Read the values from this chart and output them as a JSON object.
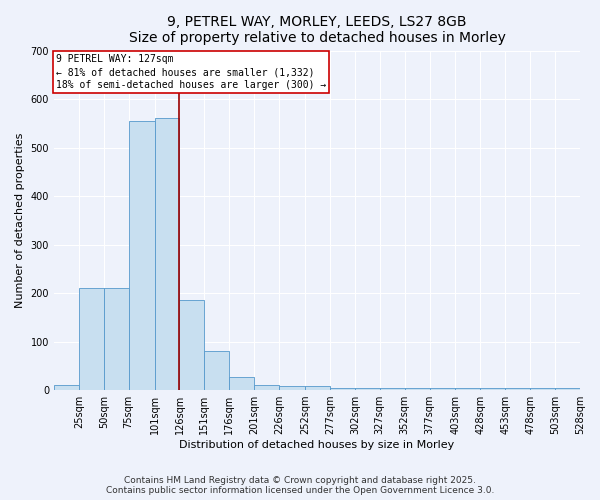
{
  "title_line1": "9, PETREL WAY, MORLEY, LEEDS, LS27 8GB",
  "title_line2": "Size of property relative to detached houses in Morley",
  "xlabel": "Distribution of detached houses by size in Morley",
  "ylabel": "Number of detached properties",
  "bar_values": [
    10,
    210,
    210,
    555,
    560,
    185,
    80,
    28,
    10,
    8,
    8,
    5,
    5,
    5,
    5,
    5,
    5,
    5,
    5,
    5,
    5
  ],
  "bin_edges": [
    0,
    25,
    50,
    75,
    101,
    126,
    151,
    176,
    201,
    226,
    252,
    277,
    302,
    327,
    352,
    377,
    403,
    428,
    453,
    478,
    503,
    528
  ],
  "tick_labels": [
    "25sqm",
    "50sqm",
    "75sqm",
    "101sqm",
    "126sqm",
    "151sqm",
    "176sqm",
    "201sqm",
    "226sqm",
    "252sqm",
    "277sqm",
    "302sqm",
    "327sqm",
    "352sqm",
    "377sqm",
    "403sqm",
    "428sqm",
    "453sqm",
    "478sqm",
    "503sqm",
    "528sqm"
  ],
  "bar_color": "#c8dff0",
  "bar_edge_color": "#5599cc",
  "property_line_x": 126,
  "property_line_color": "#990000",
  "annotation_text_line1": "9 PETREL WAY: 127sqm",
  "annotation_text_line2": "← 81% of detached houses are smaller (1,332)",
  "annotation_text_line3": "18% of semi-detached houses are larger (300) →",
  "annotation_box_color": "#cc0000",
  "ylim": [
    0,
    700
  ],
  "yticks": [
    0,
    100,
    200,
    300,
    400,
    500,
    600,
    700
  ],
  "background_color": "#eef2fb",
  "grid_color": "#ffffff",
  "title_fontsize": 10,
  "axis_label_fontsize": 8,
  "tick_fontsize": 7,
  "annotation_fontsize": 7,
  "footer_text": "Contains HM Land Registry data © Crown copyright and database right 2025.\nContains public sector information licensed under the Open Government Licence 3.0."
}
